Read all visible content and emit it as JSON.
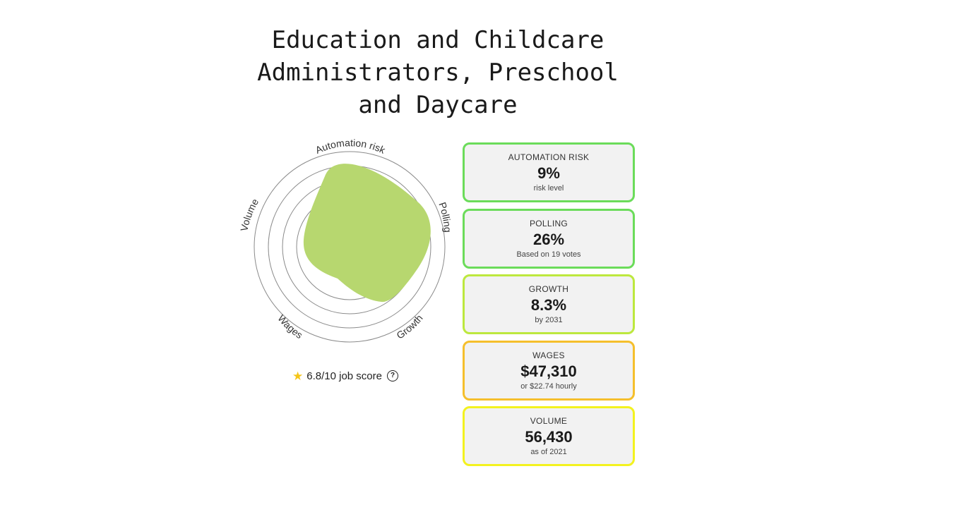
{
  "title": {
    "line1": "Education and Childcare",
    "line2": "Administrators, Preschool",
    "line3": "and Daycare"
  },
  "radar": {
    "axes": [
      "Automation risk",
      "Polling",
      "Growth",
      "Wages",
      "Volume"
    ],
    "fill_color": "#b7d76f"
  },
  "score": {
    "icon": "star-icon",
    "text": "6.8/10 job score",
    "help_icon": "question-circle-icon",
    "help_glyph": "?"
  },
  "cards": [
    {
      "label": "AUTOMATION RISK",
      "value": "9%",
      "sub": "risk level",
      "border_color": "#6bdc5a"
    },
    {
      "label": "POLLING",
      "value": "26%",
      "sub": "Based on 19 votes",
      "border_color": "#6bdc5a"
    },
    {
      "label": "GROWTH",
      "value": "8.3%",
      "sub": "by 2031",
      "border_color": "#bde83e"
    },
    {
      "label": "WAGES",
      "value": "$47,310",
      "sub": "or $22.74 hourly",
      "border_color": "#f5bf2c"
    },
    {
      "label": "VOLUME",
      "value": "56,430",
      "sub": "as of 2021",
      "border_color": "#f3f21f"
    }
  ]
}
